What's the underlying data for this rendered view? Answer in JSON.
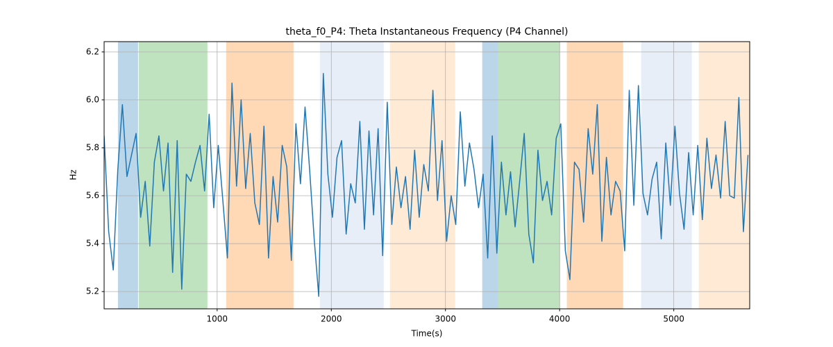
{
  "chart_data": {
    "type": "line",
    "title": "theta_f0_P4: Theta Instantaneous Frequency (P4 Channel)",
    "xlabel": "Time(s)",
    "ylabel": "Hz",
    "xlim": [
      10,
      5665
    ],
    "ylim": [
      5.128,
      6.243
    ],
    "xticks": [
      1000,
      2000,
      3000,
      4000,
      5000
    ],
    "yticks": [
      5.2,
      5.4,
      5.6,
      5.8,
      {
        "value": 6,
        "label": "6.0"
      },
      6.2
    ],
    "grid": true,
    "spans": [
      {
        "start": 131,
        "end": 307,
        "color": "#1f77b4"
      },
      {
        "start": 313,
        "end": 915,
        "color": "#2ca02c"
      },
      {
        "start": 1079,
        "end": 1669,
        "color": "#ff7f0e"
      },
      {
        "start": 1900,
        "end": 2459,
        "color": "#aec7e8"
      },
      {
        "start": 2514,
        "end": 3085,
        "color": "#ffbb78"
      },
      {
        "start": 3322,
        "end": 3462,
        "color": "#1f77b4"
      },
      {
        "start": 3462,
        "end": 4003,
        "color": "#2ca02c"
      },
      {
        "start": 4063,
        "end": 4556,
        "color": "#ff7f0e"
      },
      {
        "start": 4714,
        "end": 5158,
        "color": "#aec7e8"
      },
      {
        "start": 5219,
        "end": 5663,
        "color": "#ffbb78"
      }
    ],
    "x": [
      10,
      50,
      90,
      130,
      170,
      210,
      250,
      290,
      330,
      370,
      410,
      450,
      490,
      530,
      570,
      610,
      650,
      690,
      730,
      770,
      810,
      850,
      890,
      930,
      970,
      1010,
      1050,
      1090,
      1130,
      1170,
      1210,
      1250,
      1290,
      1330,
      1370,
      1410,
      1450,
      1490,
      1530,
      1570,
      1610,
      1650,
      1690,
      1730,
      1770,
      1810,
      1850,
      1890,
      1930,
      1970,
      2010,
      2050,
      2090,
      2130,
      2170,
      2210,
      2250,
      2290,
      2330,
      2370,
      2410,
      2450,
      2490,
      2530,
      2570,
      2610,
      2650,
      2690,
      2730,
      2770,
      2810,
      2850,
      2890,
      2930,
      2970,
      3010,
      3050,
      3090,
      3130,
      3170,
      3210,
      3250,
      3290,
      3330,
      3370,
      3410,
      3450,
      3490,
      3530,
      3570,
      3610,
      3650,
      3690,
      3730,
      3770,
      3810,
      3850,
      3890,
      3930,
      3970,
      4010,
      4050,
      4090,
      4130,
      4170,
      4210,
      4250,
      4290,
      4330,
      4370,
      4410,
      4450,
      4490,
      4530,
      4570,
      4610,
      4650,
      4690,
      4730,
      4770,
      4810,
      4850,
      4890,
      4930,
      4970,
      5010,
      5050,
      5090,
      5130,
      5170,
      5210,
      5250,
      5290,
      5330,
      5370,
      5410,
      5450,
      5490,
      5530,
      5570,
      5610,
      5650
    ],
    "series": [
      {
        "color": "#1f77b4",
        "values": [
          5.85,
          5.45,
          5.29,
          5.71,
          5.98,
          5.68,
          5.77,
          5.86,
          5.51,
          5.66,
          5.39,
          5.74,
          5.85,
          5.62,
          5.82,
          5.28,
          5.83,
          5.21,
          5.69,
          5.66,
          5.74,
          5.81,
          5.62,
          5.94,
          5.55,
          5.81,
          5.58,
          5.34,
          6.07,
          5.64,
          6.0,
          5.63,
          5.86,
          5.57,
          5.48,
          5.89,
          5.34,
          5.68,
          5.49,
          5.81,
          5.72,
          5.33,
          5.9,
          5.65,
          5.97,
          5.71,
          5.42,
          5.18,
          6.11,
          5.69,
          5.51,
          5.76,
          5.83,
          5.44,
          5.65,
          5.57,
          5.91,
          5.46,
          5.87,
          5.52,
          5.88,
          5.35,
          5.99,
          5.48,
          5.72,
          5.55,
          5.68,
          5.46,
          5.79,
          5.51,
          5.73,
          5.62,
          6.04,
          5.58,
          5.83,
          5.41,
          5.6,
          5.48,
          5.95,
          5.64,
          5.82,
          5.71,
          5.55,
          5.69,
          5.34,
          5.85,
          5.36,
          5.74,
          5.52,
          5.7,
          5.47,
          5.66,
          5.86,
          5.44,
          5.32,
          5.79,
          5.58,
          5.66,
          5.52,
          5.84,
          5.9,
          5.37,
          5.25,
          5.74,
          5.71,
          5.49,
          5.88,
          5.69,
          5.98,
          5.41,
          5.76,
          5.52,
          5.66,
          5.62,
          5.37,
          6.04,
          5.56,
          6.06,
          5.61,
          5.52,
          5.67,
          5.74,
          5.42,
          5.82,
          5.56,
          5.89,
          5.61,
          5.46,
          5.78,
          5.52,
          5.81,
          5.5,
          5.84,
          5.63,
          5.77,
          5.59,
          5.91,
          5.6,
          5.59,
          6.01,
          5.45,
          5.77
        ]
      }
    ]
  }
}
